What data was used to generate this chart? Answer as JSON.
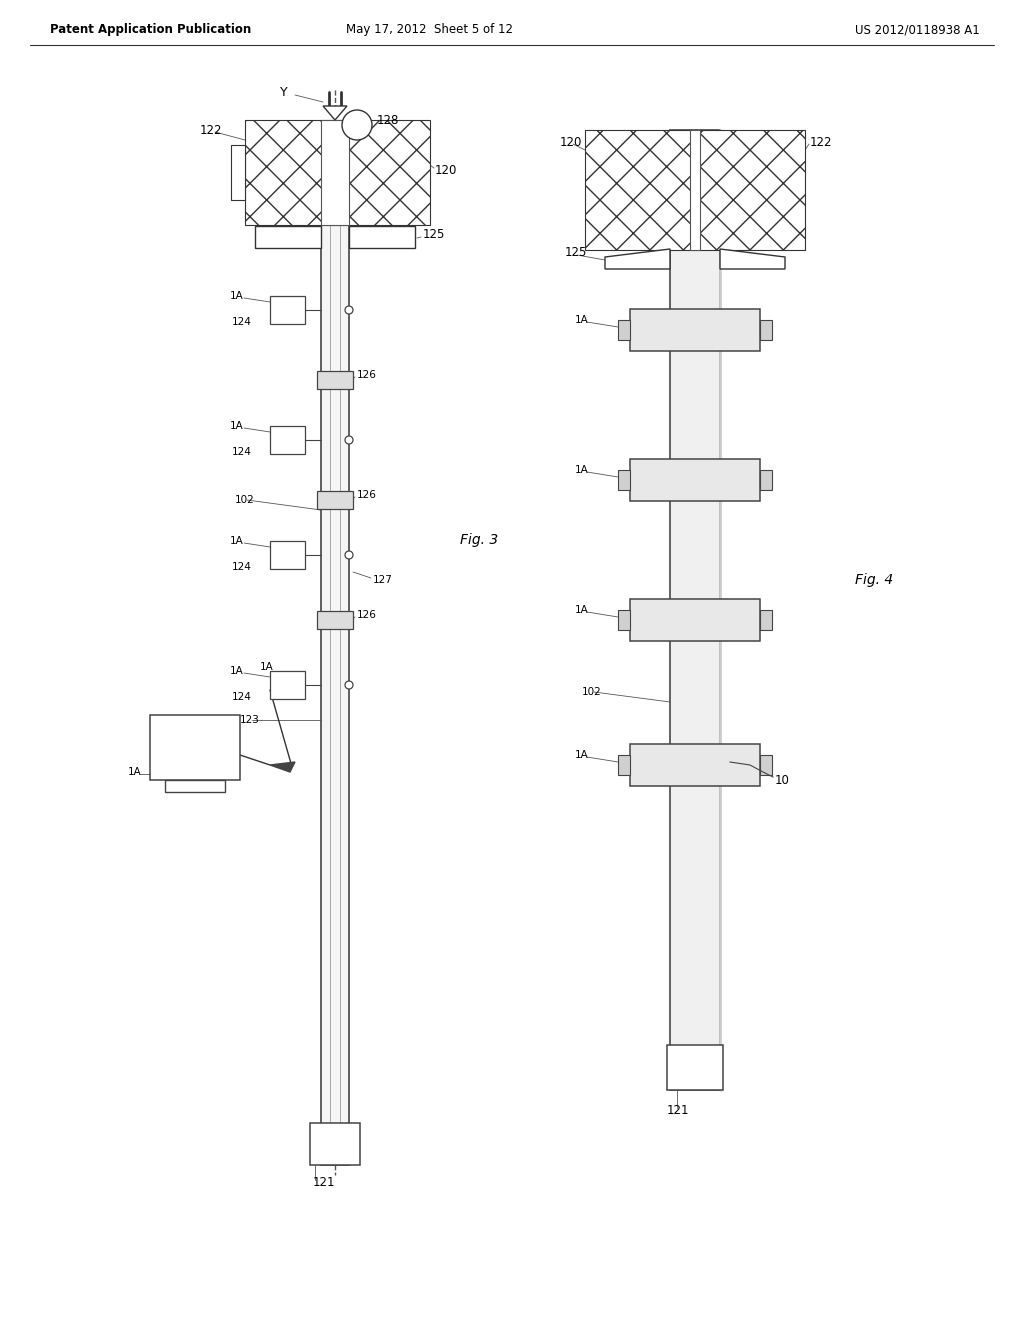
{
  "bg_color": "#ffffff",
  "header_left": "Patent Application Publication",
  "header_mid": "May 17, 2012  Sheet 5 of 12",
  "header_right": "US 2012/0118938 A1",
  "fig3_label": "Fig. 3",
  "fig4_label": "Fig. 4"
}
